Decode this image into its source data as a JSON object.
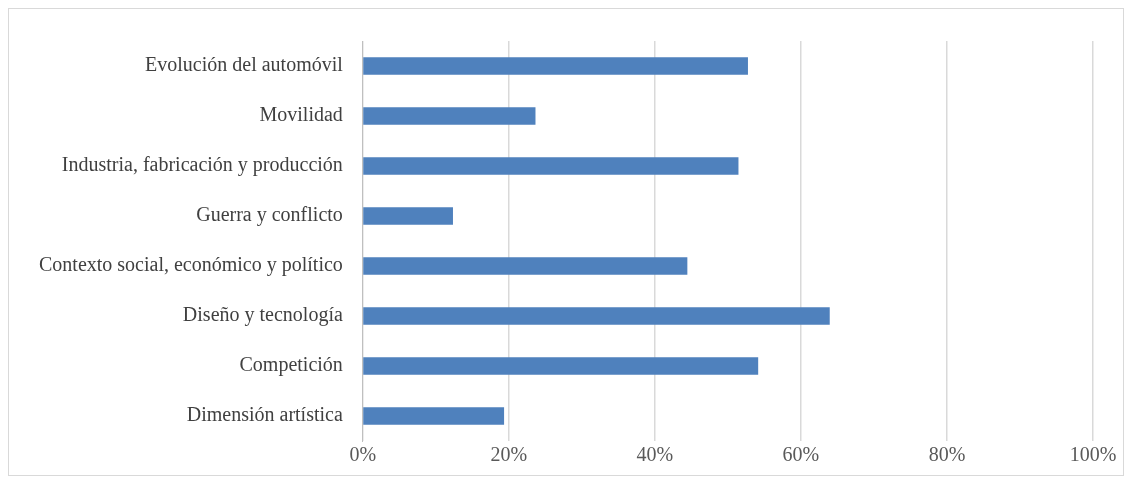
{
  "chart_data": {
    "type": "bar",
    "orientation": "horizontal",
    "categories": [
      "Evolución del automóvil",
      "Movilidad",
      "Industria, fabricación y producción",
      "Guerra y conflicto",
      "Contexto social, económico y político",
      "Diseño y tecnología",
      "Competición",
      "Dimensión artística"
    ],
    "values": [
      52.7,
      23.6,
      51.4,
      12.3,
      44.4,
      63.9,
      54.1,
      19.3
    ],
    "color": "#4f81bd",
    "xlim": [
      0,
      100
    ],
    "xticks": [
      {
        "value": 0,
        "label": "0%"
      },
      {
        "value": 20,
        "label": "20%"
      },
      {
        "value": 40,
        "label": "40%"
      },
      {
        "value": 60,
        "label": "60%"
      },
      {
        "value": 80,
        "label": "80%"
      },
      {
        "value": 100,
        "label": "100%"
      }
    ],
    "grid": "x",
    "legend": false
  }
}
